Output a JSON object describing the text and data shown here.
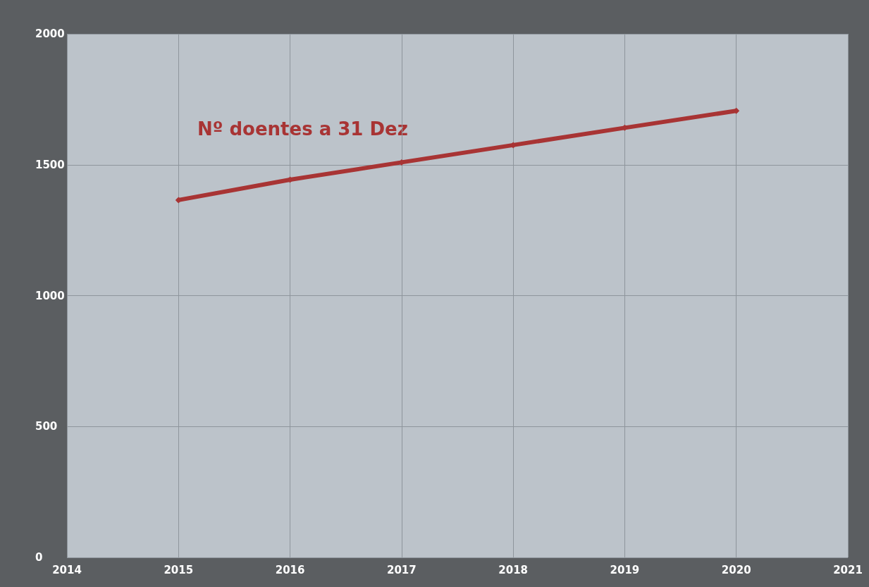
{
  "chart_data": {
    "type": "line",
    "x": [
      2015,
      2016,
      2017,
      2018,
      2019,
      2020
    ],
    "series": [
      {
        "name": "Nº doentes a 31 Dez",
        "color": "#a83434",
        "values": [
          1365,
          1443,
          1509,
          1575,
          1641,
          1706
        ]
      }
    ],
    "xlim": [
      2014,
      2021
    ],
    "xticks": [
      2014,
      2015,
      2016,
      2017,
      2018,
      2019,
      2020,
      2021
    ],
    "ylim": [
      0,
      2000
    ],
    "yticks": [
      0,
      500,
      1000,
      1500,
      2000
    ],
    "grid": true,
    "marker": "diamond",
    "line_style": "solid",
    "legend": false
  }
}
